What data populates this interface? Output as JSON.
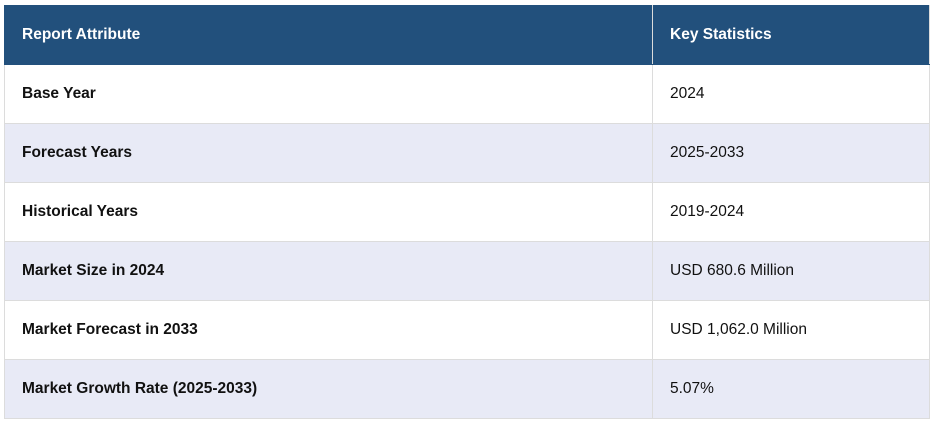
{
  "table": {
    "header": [
      "Report Attribute",
      "Key Statistics"
    ],
    "rows": [
      [
        "Base Year",
        "2024"
      ],
      [
        "Forecast Years",
        "2025-2033"
      ],
      [
        "Historical Years",
        "2019-2024"
      ],
      [
        "Market Size in 2024",
        "USD 680.6 Million"
      ],
      [
        "Market Forecast in 2033",
        "USD 1,062.0 Million"
      ],
      [
        "Market Growth Rate (2025-2033)",
        "5.07%"
      ]
    ]
  }
}
